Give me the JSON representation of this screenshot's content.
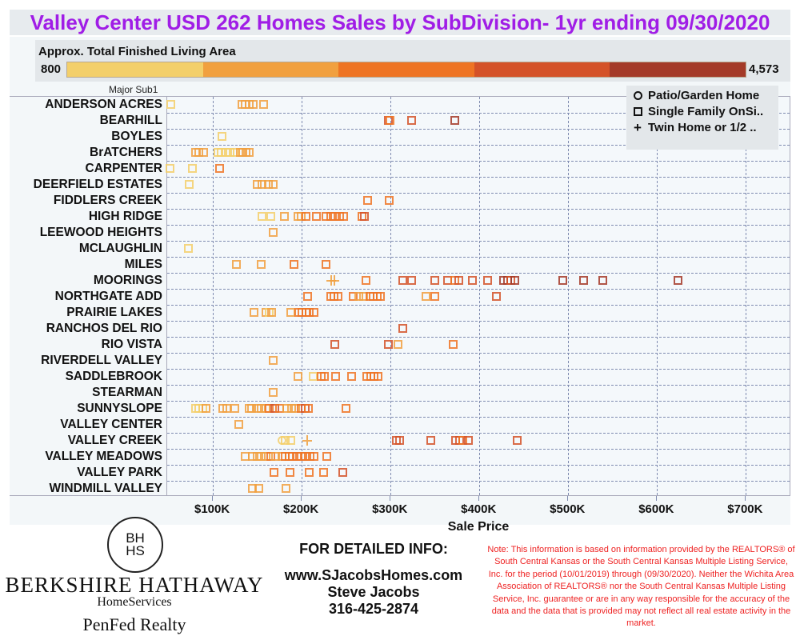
{
  "title": "Valley Center USD 262 Homes Sales by SubDivision- 1yr ending 09/30/2020",
  "color_legend": {
    "label": "Approx. Total Finished Living Area",
    "min_label": "800",
    "max_label": "4,573",
    "colors": [
      "#f3cf6a",
      "#f1a03f",
      "#ee7423",
      "#d45228",
      "#a43a28"
    ]
  },
  "shape_legend": {
    "items": [
      {
        "symbol": "circle",
        "label": "Patio/Garden Home"
      },
      {
        "symbol": "square",
        "label": "Single Family OnSi.."
      },
      {
        "symbol": "plus",
        "label": "Twin Home or 1/2 .."
      }
    ]
  },
  "y_axis_header": "Major Sub1",
  "x_axis": {
    "title": "Sale Price",
    "ticks": [
      {
        "value": 100,
        "label": "$100K"
      },
      {
        "value": 200,
        "label": "$200K"
      },
      {
        "value": 300,
        "label": "$300K"
      },
      {
        "value": 400,
        "label": "$400K"
      },
      {
        "value": 500,
        "label": "$500K"
      },
      {
        "value": 600,
        "label": "$600K"
      },
      {
        "value": 700,
        "label": "$700K"
      }
    ],
    "min": 48.6,
    "max": 751
  },
  "chart_data": {
    "type": "scatter",
    "title": "Valley Center USD 262 Homes Sales by SubDivision- 1yr ending 09/30/2020",
    "xlabel": "Sale Price",
    "ylabel": "Major Sub1",
    "xlim": [
      48.6,
      751
    ],
    "x_unit": "$K",
    "color_encoding": "Approx. Total Finished Living Area (800 to 4,573), 5 bins light-yellow to dark-red (bin index 0-4)",
    "shape_encoding": {
      "circle": "Patio/Garden Home",
      "square": "Single Family OnSi..",
      "plus": "Twin Home or 1/2 .."
    },
    "grid": true,
    "legend_position": "top-right",
    "categories": [
      "ANDERSON ACRES",
      "BEARHILL",
      "BOYLES",
      "BrATCHERS",
      "CARPENTER",
      "DEERFIELD ESTATES",
      "FIDDLERS CREEK",
      "HIGH RIDGE",
      "LEEWOOD HEIGHTS",
      "MCLAUGHLIN",
      "MILES",
      "MOORINGS",
      "NORTHGATE ADD",
      "PRAIRIE LAKES",
      "RANCHOS DEL RIO",
      "RIO VISTA",
      "RIVERDELL VALLEY",
      "SADDLEBROOK",
      "STEARMAN",
      "SUNNYSLOPE",
      "VALLEY CENTER",
      "VALLEY CREEK",
      "VALLEY MEADOWS",
      "VALLEY PARK",
      "WINDMILL VALLEY"
    ],
    "points": [
      {
        "row": 0,
        "x": 53,
        "c": 0,
        "s": "square"
      },
      {
        "row": 0,
        "x": 133,
        "c": 1,
        "s": "square"
      },
      {
        "row": 0,
        "x": 137,
        "c": 1,
        "s": "square"
      },
      {
        "row": 0,
        "x": 141,
        "c": 1,
        "s": "square"
      },
      {
        "row": 0,
        "x": 146,
        "c": 1,
        "s": "square"
      },
      {
        "row": 0,
        "x": 158,
        "c": 1,
        "s": "square"
      },
      {
        "row": 1,
        "x": 298,
        "c": 3,
        "s": "square"
      },
      {
        "row": 1,
        "x": 300,
        "c": 2,
        "s": "square"
      },
      {
        "row": 1,
        "x": 324,
        "c": 3,
        "s": "square"
      },
      {
        "row": 1,
        "x": 373,
        "c": 4,
        "s": "square"
      },
      {
        "row": 2,
        "x": 111,
        "c": 0,
        "s": "square"
      },
      {
        "row": 3,
        "x": 81,
        "c": 1,
        "s": "square"
      },
      {
        "row": 3,
        "x": 85,
        "c": 1,
        "s": "square"
      },
      {
        "row": 3,
        "x": 90,
        "c": 1,
        "s": "square"
      },
      {
        "row": 3,
        "x": 106,
        "c": 0,
        "s": "square"
      },
      {
        "row": 3,
        "x": 110,
        "c": 0,
        "s": "square"
      },
      {
        "row": 3,
        "x": 115,
        "c": 0,
        "s": "square"
      },
      {
        "row": 3,
        "x": 120,
        "c": 0,
        "s": "square"
      },
      {
        "row": 3,
        "x": 125,
        "c": 0,
        "s": "square"
      },
      {
        "row": 3,
        "x": 131,
        "c": 1,
        "s": "square"
      },
      {
        "row": 3,
        "x": 134,
        "c": 1,
        "s": "square"
      },
      {
        "row": 3,
        "x": 138,
        "c": 1,
        "s": "square"
      },
      {
        "row": 3,
        "x": 141,
        "c": 1,
        "s": "square"
      },
      {
        "row": 4,
        "x": 52,
        "c": 0,
        "s": "square"
      },
      {
        "row": 4,
        "x": 77,
        "c": 0,
        "s": "square"
      },
      {
        "row": 4,
        "x": 108,
        "c": 2,
        "s": "square"
      },
      {
        "row": 5,
        "x": 74,
        "c": 0,
        "s": "square"
      },
      {
        "row": 5,
        "x": 150,
        "c": 1,
        "s": "square"
      },
      {
        "row": 5,
        "x": 156,
        "c": 1,
        "s": "square"
      },
      {
        "row": 5,
        "x": 163,
        "c": 1,
        "s": "square"
      },
      {
        "row": 5,
        "x": 168,
        "c": 1,
        "s": "square"
      },
      {
        "row": 6,
        "x": 275,
        "c": 2,
        "s": "square"
      },
      {
        "row": 6,
        "x": 299,
        "c": 2,
        "s": "square"
      },
      {
        "row": 7,
        "x": 156,
        "c": 0,
        "s": "square"
      },
      {
        "row": 7,
        "x": 166,
        "c": 0,
        "s": "square"
      },
      {
        "row": 7,
        "x": 181,
        "c": 1,
        "s": "square"
      },
      {
        "row": 7,
        "x": 196,
        "c": 1,
        "s": "square"
      },
      {
        "row": 7,
        "x": 200,
        "c": 1,
        "s": "square"
      },
      {
        "row": 7,
        "x": 205,
        "c": 2,
        "s": "square"
      },
      {
        "row": 7,
        "x": 217,
        "c": 2,
        "s": "square"
      },
      {
        "row": 7,
        "x": 228,
        "c": 2,
        "s": "square"
      },
      {
        "row": 7,
        "x": 233,
        "c": 2,
        "s": "square"
      },
      {
        "row": 7,
        "x": 238,
        "c": 2,
        "s": "square"
      },
      {
        "row": 7,
        "x": 243,
        "c": 2,
        "s": "square"
      },
      {
        "row": 7,
        "x": 248,
        "c": 2,
        "s": "square"
      },
      {
        "row": 7,
        "x": 268,
        "c": 2,
        "s": "square"
      },
      {
        "row": 7,
        "x": 271,
        "c": 3,
        "s": "square"
      },
      {
        "row": 8,
        "x": 168,
        "c": 1,
        "s": "square"
      },
      {
        "row": 9,
        "x": 73,
        "c": 0,
        "s": "square"
      },
      {
        "row": 10,
        "x": 127,
        "c": 1,
        "s": "square"
      },
      {
        "row": 10,
        "x": 155,
        "c": 1,
        "s": "square"
      },
      {
        "row": 10,
        "x": 192,
        "c": 2,
        "s": "square"
      },
      {
        "row": 10,
        "x": 228,
        "c": 2,
        "s": "square"
      },
      {
        "row": 11,
        "x": 233,
        "c": 1,
        "s": "plus"
      },
      {
        "row": 11,
        "x": 237,
        "c": 1,
        "s": "plus"
      },
      {
        "row": 11,
        "x": 273,
        "c": 2,
        "s": "square"
      },
      {
        "row": 11,
        "x": 314,
        "c": 3,
        "s": "square"
      },
      {
        "row": 11,
        "x": 324,
        "c": 3,
        "s": "square"
      },
      {
        "row": 11,
        "x": 350,
        "c": 3,
        "s": "square"
      },
      {
        "row": 11,
        "x": 365,
        "c": 3,
        "s": "square"
      },
      {
        "row": 11,
        "x": 373,
        "c": 2,
        "s": "square"
      },
      {
        "row": 11,
        "x": 377,
        "c": 3,
        "s": "square"
      },
      {
        "row": 11,
        "x": 393,
        "c": 3,
        "s": "square"
      },
      {
        "row": 11,
        "x": 410,
        "c": 3,
        "s": "square"
      },
      {
        "row": 11,
        "x": 428,
        "c": 4,
        "s": "square"
      },
      {
        "row": 11,
        "x": 432,
        "c": 4,
        "s": "square"
      },
      {
        "row": 11,
        "x": 436,
        "c": 3,
        "s": "square"
      },
      {
        "row": 11,
        "x": 440,
        "c": 4,
        "s": "square"
      },
      {
        "row": 11,
        "x": 494,
        "c": 4,
        "s": "square"
      },
      {
        "row": 11,
        "x": 518,
        "c": 4,
        "s": "square"
      },
      {
        "row": 11,
        "x": 539,
        "c": 4,
        "s": "square"
      },
      {
        "row": 11,
        "x": 624,
        "c": 4,
        "s": "square"
      },
      {
        "row": 12,
        "x": 207,
        "c": 2,
        "s": "square"
      },
      {
        "row": 12,
        "x": 233,
        "c": 2,
        "s": "square"
      },
      {
        "row": 12,
        "x": 237,
        "c": 2,
        "s": "square"
      },
      {
        "row": 12,
        "x": 241,
        "c": 2,
        "s": "square"
      },
      {
        "row": 12,
        "x": 258,
        "c": 2,
        "s": "square"
      },
      {
        "row": 12,
        "x": 265,
        "c": 1,
        "s": "square"
      },
      {
        "row": 12,
        "x": 270,
        "c": 1,
        "s": "square"
      },
      {
        "row": 12,
        "x": 277,
        "c": 2,
        "s": "square"
      },
      {
        "row": 12,
        "x": 281,
        "c": 2,
        "s": "square"
      },
      {
        "row": 12,
        "x": 285,
        "c": 2,
        "s": "square"
      },
      {
        "row": 12,
        "x": 289,
        "c": 2,
        "s": "square"
      },
      {
        "row": 12,
        "x": 340,
        "c": 1,
        "s": "square"
      },
      {
        "row": 12,
        "x": 350,
        "c": 2,
        "s": "square"
      },
      {
        "row": 12,
        "x": 420,
        "c": 3,
        "s": "square"
      },
      {
        "row": 13,
        "x": 147,
        "c": 1,
        "s": "square"
      },
      {
        "row": 13,
        "x": 160,
        "c": 1,
        "s": "square"
      },
      {
        "row": 13,
        "x": 164,
        "c": 0,
        "s": "square"
      },
      {
        "row": 13,
        "x": 167,
        "c": 1,
        "s": "square"
      },
      {
        "row": 13,
        "x": 188,
        "c": 1,
        "s": "square"
      },
      {
        "row": 13,
        "x": 197,
        "c": 2,
        "s": "square"
      },
      {
        "row": 13,
        "x": 201,
        "c": 2,
        "s": "square"
      },
      {
        "row": 13,
        "x": 205,
        "c": 2,
        "s": "square"
      },
      {
        "row": 13,
        "x": 209,
        "c": 2,
        "s": "square"
      },
      {
        "row": 13,
        "x": 214,
        "c": 2,
        "s": "square"
      },
      {
        "row": 14,
        "x": 314,
        "c": 3,
        "s": "square"
      },
      {
        "row": 15,
        "x": 238,
        "c": 3,
        "s": "square"
      },
      {
        "row": 15,
        "x": 298,
        "c": 3,
        "s": "square"
      },
      {
        "row": 15,
        "x": 309,
        "c": 1,
        "s": "square"
      },
      {
        "row": 15,
        "x": 371,
        "c": 2,
        "s": "square"
      },
      {
        "row": 16,
        "x": 168,
        "c": 1,
        "s": "square"
      },
      {
        "row": 17,
        "x": 196,
        "c": 1,
        "s": "square"
      },
      {
        "row": 17,
        "x": 213,
        "c": 0,
        "s": "square"
      },
      {
        "row": 17,
        "x": 222,
        "c": 2,
        "s": "square"
      },
      {
        "row": 17,
        "x": 226,
        "c": 2,
        "s": "square"
      },
      {
        "row": 17,
        "x": 239,
        "c": 2,
        "s": "square"
      },
      {
        "row": 17,
        "x": 257,
        "c": 2,
        "s": "square"
      },
      {
        "row": 17,
        "x": 274,
        "c": 2,
        "s": "square"
      },
      {
        "row": 17,
        "x": 278,
        "c": 2,
        "s": "square"
      },
      {
        "row": 17,
        "x": 282,
        "c": 2,
        "s": "square"
      },
      {
        "row": 17,
        "x": 286,
        "c": 2,
        "s": "square"
      },
      {
        "row": 18,
        "x": 168,
        "c": 1,
        "s": "square"
      },
      {
        "row": 19,
        "x": 81,
        "c": 0,
        "s": "square"
      },
      {
        "row": 19,
        "x": 85,
        "c": 0,
        "s": "square"
      },
      {
        "row": 19,
        "x": 89,
        "c": 0,
        "s": "square"
      },
      {
        "row": 19,
        "x": 93,
        "c": 1,
        "s": "square"
      },
      {
        "row": 19,
        "x": 112,
        "c": 1,
        "s": "square"
      },
      {
        "row": 19,
        "x": 116,
        "c": 1,
        "s": "square"
      },
      {
        "row": 19,
        "x": 125,
        "c": 1,
        "s": "square"
      },
      {
        "row": 19,
        "x": 141,
        "c": 1,
        "s": "square"
      },
      {
        "row": 19,
        "x": 144,
        "c": 1,
        "s": "square"
      },
      {
        "row": 19,
        "x": 150,
        "c": 1,
        "s": "square"
      },
      {
        "row": 19,
        "x": 155,
        "c": 1,
        "s": "square"
      },
      {
        "row": 19,
        "x": 160,
        "c": 1,
        "s": "square"
      },
      {
        "row": 19,
        "x": 164,
        "c": 2,
        "s": "square"
      },
      {
        "row": 19,
        "x": 170,
        "c": 3,
        "s": "square"
      },
      {
        "row": 19,
        "x": 176,
        "c": 2,
        "s": "square"
      },
      {
        "row": 19,
        "x": 184,
        "c": 1,
        "s": "square"
      },
      {
        "row": 19,
        "x": 189,
        "c": 1,
        "s": "square"
      },
      {
        "row": 19,
        "x": 194,
        "c": 1,
        "s": "square"
      },
      {
        "row": 19,
        "x": 200,
        "c": 2,
        "s": "square"
      },
      {
        "row": 19,
        "x": 204,
        "c": 3,
        "s": "square"
      },
      {
        "row": 19,
        "x": 208,
        "c": 2,
        "s": "square"
      },
      {
        "row": 19,
        "x": 250,
        "c": 2,
        "s": "square"
      },
      {
        "row": 20,
        "x": 130,
        "c": 1,
        "s": "square"
      },
      {
        "row": 21,
        "x": 178,
        "c": 0,
        "s": "circle"
      },
      {
        "row": 21,
        "x": 182,
        "c": 0,
        "s": "square"
      },
      {
        "row": 21,
        "x": 188,
        "c": 0,
        "s": "square"
      },
      {
        "row": 21,
        "x": 206,
        "c": 1,
        "s": "plus"
      },
      {
        "row": 21,
        "x": 307,
        "c": 3,
        "s": "square"
      },
      {
        "row": 21,
        "x": 311,
        "c": 3,
        "s": "square"
      },
      {
        "row": 21,
        "x": 346,
        "c": 3,
        "s": "square"
      },
      {
        "row": 21,
        "x": 374,
        "c": 3,
        "s": "square"
      },
      {
        "row": 21,
        "x": 378,
        "c": 3,
        "s": "square"
      },
      {
        "row": 21,
        "x": 382,
        "c": 2,
        "s": "square"
      },
      {
        "row": 21,
        "x": 388,
        "c": 3,
        "s": "square"
      },
      {
        "row": 21,
        "x": 443,
        "c": 3,
        "s": "square"
      },
      {
        "row": 22,
        "x": 137,
        "c": 1,
        "s": "square"
      },
      {
        "row": 22,
        "x": 145,
        "c": 1,
        "s": "square"
      },
      {
        "row": 22,
        "x": 150,
        "c": 1,
        "s": "square"
      },
      {
        "row": 22,
        "x": 155,
        "c": 1,
        "s": "square"
      },
      {
        "row": 22,
        "x": 160,
        "c": 1,
        "s": "square"
      },
      {
        "row": 22,
        "x": 166,
        "c": 2,
        "s": "square"
      },
      {
        "row": 22,
        "x": 171,
        "c": 1,
        "s": "square"
      },
      {
        "row": 22,
        "x": 178,
        "c": 1,
        "s": "square"
      },
      {
        "row": 22,
        "x": 182,
        "c": 2,
        "s": "square"
      },
      {
        "row": 22,
        "x": 186,
        "c": 2,
        "s": "square"
      },
      {
        "row": 22,
        "x": 190,
        "c": 2,
        "s": "square"
      },
      {
        "row": 22,
        "x": 195,
        "c": 2,
        "s": "square"
      },
      {
        "row": 22,
        "x": 200,
        "c": 2,
        "s": "square"
      },
      {
        "row": 22,
        "x": 204,
        "c": 2,
        "s": "square"
      },
      {
        "row": 22,
        "x": 210,
        "c": 2,
        "s": "square"
      },
      {
        "row": 22,
        "x": 214,
        "c": 2,
        "s": "square"
      },
      {
        "row": 22,
        "x": 229,
        "c": 2,
        "s": "square"
      },
      {
        "row": 23,
        "x": 169,
        "c": 2,
        "s": "square"
      },
      {
        "row": 23,
        "x": 187,
        "c": 2,
        "s": "square"
      },
      {
        "row": 23,
        "x": 209,
        "c": 2,
        "s": "square"
      },
      {
        "row": 23,
        "x": 225,
        "c": 2,
        "s": "square"
      },
      {
        "row": 23,
        "x": 247,
        "c": 3,
        "s": "square"
      },
      {
        "row": 24,
        "x": 145,
        "c": 1,
        "s": "square"
      },
      {
        "row": 24,
        "x": 152,
        "c": 1,
        "s": "square"
      },
      {
        "row": 24,
        "x": 183,
        "c": 1,
        "s": "square"
      }
    ]
  },
  "branding": {
    "seal_line1": "BH",
    "seal_line2": "HS",
    "company": "BERKSHIRE HATHAWAY",
    "division": "HomeServices",
    "office": "PenFed Realty"
  },
  "contact": {
    "header": "FOR DETAILED INFO:",
    "website": "www.SJacobsHomes.com",
    "name": "Steve Jacobs",
    "phone": "316-425-2874"
  },
  "note": "Note: This information is based on information provided by the REALTORS® of South Central Kansas or the South Central Kansas Multiple Listing Service, Inc. for the period (10/01/2019) through (09/30/2020). Neither the Wichita Area Association of REALTORS® nor the South Central Kansas Multiple Listing Service, Inc. guarantee or are in any way responsible for the accuracy of the data and the data that is provided may not reflect all real estate activity in the market."
}
